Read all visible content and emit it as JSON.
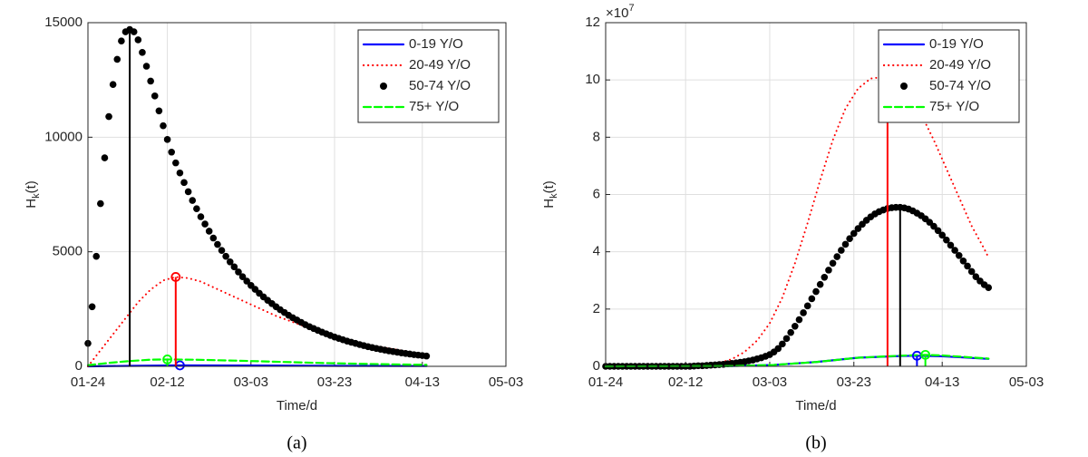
{
  "chart_data": [
    {
      "type": "line",
      "sublabel": "(a)",
      "xlabel": "Time/d",
      "ylabel": {
        "main": "H",
        "sub": "k",
        "rest": "(t)"
      },
      "xlim": [
        0,
        100
      ],
      "xticks": [
        {
          "value": 0,
          "label": "01-24"
        },
        {
          "value": 19,
          "label": "02-12"
        },
        {
          "value": 39,
          "label": "03-03"
        },
        {
          "value": 59,
          "label": "03-23"
        },
        {
          "value": 80,
          "label": "04-13"
        },
        {
          "value": 100,
          "label": "05-03"
        }
      ],
      "ylim": [
        0,
        15000
      ],
      "yticks": [
        0,
        5000,
        10000,
        15000
      ],
      "grid": true,
      "legend": "northeast",
      "series": [
        {
          "name": "0-19 Y/O",
          "color": "#0000ff",
          "style": "solid",
          "x": [
            0,
            10,
            22,
            40,
            60,
            81
          ],
          "values": [
            0,
            20,
            40,
            35,
            20,
            12
          ],
          "peak": {
            "x": 22,
            "value": 40,
            "marker": true
          }
        },
        {
          "name": "20-49 Y/O",
          "color": "#ff0000",
          "style": "dotted",
          "x": [
            0,
            3,
            6,
            9,
            12,
            15,
            18,
            21,
            24,
            27,
            30,
            33,
            36,
            39,
            42,
            45,
            48,
            51,
            54,
            57,
            60,
            63,
            66,
            69,
            72,
            75,
            78,
            81
          ],
          "values": [
            0,
            700,
            1400,
            2100,
            2800,
            3350,
            3750,
            3900,
            3850,
            3700,
            3450,
            3200,
            2950,
            2700,
            2450,
            2200,
            2000,
            1800,
            1600,
            1420,
            1260,
            1120,
            990,
            880,
            780,
            690,
            610,
            540
          ],
          "peak": {
            "x": 21,
            "value": 3900,
            "marker": true
          }
        },
        {
          "name": "50-74 Y/O",
          "color": "#000000",
          "style": "dots",
          "x": [
            0,
            1,
            2,
            3,
            4,
            5,
            6,
            7,
            8,
            9,
            10,
            11,
            12,
            13,
            14,
            15,
            16,
            17,
            18,
            19,
            20,
            21,
            22,
            23,
            24,
            25,
            26,
            27,
            28,
            29,
            30,
            31,
            32,
            33,
            34,
            35,
            36,
            37,
            38,
            39,
            40,
            41,
            42,
            43,
            44,
            45,
            46,
            47,
            48,
            49,
            50,
            51,
            52,
            53,
            54,
            55,
            56,
            57,
            58,
            59,
            60,
            61,
            62,
            63,
            64,
            65,
            66,
            67,
            68,
            69,
            70,
            71,
            72,
            73,
            74,
            75,
            76,
            77,
            78,
            79,
            80,
            81
          ],
          "values": [
            1000,
            2600,
            4800,
            7100,
            9100,
            10900,
            12300,
            13400,
            14200,
            14600,
            14700,
            14600,
            14250,
            13700,
            13100,
            12450,
            11800,
            11150,
            10500,
            9900,
            9350,
            8880,
            8440,
            8020,
            7620,
            7240,
            6880,
            6530,
            6210,
            5900,
            5600,
            5320,
            5060,
            4800,
            4560,
            4340,
            4120,
            3910,
            3720,
            3530,
            3360,
            3190,
            3030,
            2880,
            2740,
            2600,
            2470,
            2350,
            2230,
            2120,
            2020,
            1920,
            1820,
            1730,
            1650,
            1570,
            1490,
            1420,
            1350,
            1280,
            1220,
            1160,
            1100,
            1050,
            1000,
            950,
            905,
            860,
            820,
            780,
            745,
            710,
            675,
            645,
            615,
            585,
            560,
            535,
            510,
            490,
            470,
            450
          ],
          "peak": {
            "x": 10,
            "value": 14700,
            "marker": false
          }
        },
        {
          "name": "75+ Y/O",
          "color": "#00ff00",
          "style": "dashed",
          "x": [
            0,
            5,
            10,
            15,
            19,
            25,
            35,
            45,
            55,
            65,
            75,
            81
          ],
          "values": [
            50,
            150,
            230,
            290,
            300,
            290,
            250,
            200,
            150,
            110,
            80,
            65
          ],
          "peak": {
            "x": 19,
            "value": 300,
            "marker": true
          }
        }
      ]
    },
    {
      "type": "line",
      "sublabel": "(b)",
      "xlabel": "Time/d",
      "ylabel": {
        "main": "H",
        "sub": "k",
        "rest": "(t)"
      },
      "y_multiplier": {
        "base": "×10",
        "exponent": "7"
      },
      "xlim": [
        0,
        100
      ],
      "xticks": [
        {
          "value": 0,
          "label": "01-24"
        },
        {
          "value": 19,
          "label": "02-12"
        },
        {
          "value": 39,
          "label": "03-03"
        },
        {
          "value": 59,
          "label": "03-23"
        },
        {
          "value": 80,
          "label": "04-13"
        },
        {
          "value": 100,
          "label": "05-03"
        }
      ],
      "ylim": [
        0,
        12
      ],
      "yticks": [
        0,
        2,
        4,
        6,
        8,
        10,
        12
      ],
      "grid": true,
      "legend": "northeast",
      "series": [
        {
          "name": "0-19 Y/O",
          "color": "#0000ff",
          "style": "solid",
          "x": [
            0,
            30,
            40,
            50,
            60,
            70,
            74,
            80,
            85,
            91
          ],
          "values": [
            0,
            0.01,
            0.05,
            0.15,
            0.3,
            0.36,
            0.37,
            0.35,
            0.31,
            0.26
          ],
          "peak": {
            "x": 74,
            "value": 0.37,
            "marker": true
          }
        },
        {
          "name": "20-49 Y/O",
          "color": "#ff0000",
          "style": "dotted",
          "x": [
            0,
            3,
            6,
            9,
            12,
            15,
            18,
            21,
            24,
            27,
            30,
            33,
            36,
            39,
            42,
            45,
            48,
            51,
            54,
            57,
            60,
            63,
            66,
            69,
            72,
            75,
            78,
            81,
            84,
            87,
            90,
            91
          ],
          "values": [
            0,
            0,
            0,
            0,
            0,
            0,
            0.01,
            0.02,
            0.05,
            0.12,
            0.25,
            0.5,
            0.9,
            1.5,
            2.4,
            3.6,
            5.0,
            6.5,
            7.9,
            9.0,
            9.7,
            10.05,
            10.1,
            9.95,
            9.5,
            8.8,
            7.9,
            6.9,
            5.9,
            4.9,
            4.1,
            3.8
          ],
          "peak": {
            "x": 67,
            "value": 10.1,
            "marker": true
          }
        },
        {
          "name": "50-74 Y/O",
          "color": "#000000",
          "style": "dots",
          "x": [
            0,
            1,
            2,
            3,
            4,
            5,
            6,
            7,
            8,
            9,
            10,
            11,
            12,
            13,
            14,
            15,
            16,
            17,
            18,
            19,
            20,
            21,
            22,
            23,
            24,
            25,
            26,
            27,
            28,
            29,
            30,
            31,
            32,
            33,
            34,
            35,
            36,
            37,
            38,
            39,
            40,
            41,
            42,
            43,
            44,
            45,
            46,
            47,
            48,
            49,
            50,
            51,
            52,
            53,
            54,
            55,
            56,
            57,
            58,
            59,
            60,
            61,
            62,
            63,
            64,
            65,
            66,
            67,
            68,
            69,
            70,
            71,
            72,
            73,
            74,
            75,
            76,
            77,
            78,
            79,
            80,
            81,
            82,
            83,
            84,
            85,
            86,
            87,
            88,
            89,
            90,
            91
          ],
          "values": [
            0,
            0,
            0,
            0,
            0,
            0,
            0,
            0,
            0,
            0,
            0,
            0,
            0,
            0,
            0,
            0,
            0,
            0,
            0,
            0,
            0,
            0.01,
            0.02,
            0.02,
            0.03,
            0.04,
            0.05,
            0.06,
            0.07,
            0.09,
            0.1,
            0.12,
            0.14,
            0.16,
            0.19,
            0.22,
            0.26,
            0.3,
            0.35,
            0.41,
            0.5,
            0.62,
            0.78,
            0.97,
            1.18,
            1.4,
            1.63,
            1.87,
            2.11,
            2.36,
            2.61,
            2.86,
            3.11,
            3.36,
            3.6,
            3.83,
            4.05,
            4.26,
            4.46,
            4.64,
            4.81,
            4.96,
            5.1,
            5.22,
            5.32,
            5.4,
            5.46,
            5.51,
            5.54,
            5.55,
            5.55,
            5.53,
            5.49,
            5.43,
            5.35,
            5.26,
            5.15,
            5.03,
            4.89,
            4.74,
            4.58,
            4.41,
            4.23,
            4.05,
            3.87,
            3.68,
            3.5,
            3.31,
            3.13,
            2.98,
            2.85,
            2.75
          ],
          "peak": {
            "x": 70,
            "value": 5.55,
            "marker": false
          }
        },
        {
          "name": "75+ Y/O",
          "color": "#00ff00",
          "style": "dashed",
          "x": [
            0,
            30,
            40,
            50,
            60,
            70,
            76,
            80,
            85,
            91
          ],
          "values": [
            0,
            0.01,
            0.05,
            0.15,
            0.3,
            0.37,
            0.4,
            0.38,
            0.33,
            0.27
          ],
          "peak": {
            "x": 76,
            "value": 0.4,
            "marker": true
          }
        }
      ]
    }
  ]
}
